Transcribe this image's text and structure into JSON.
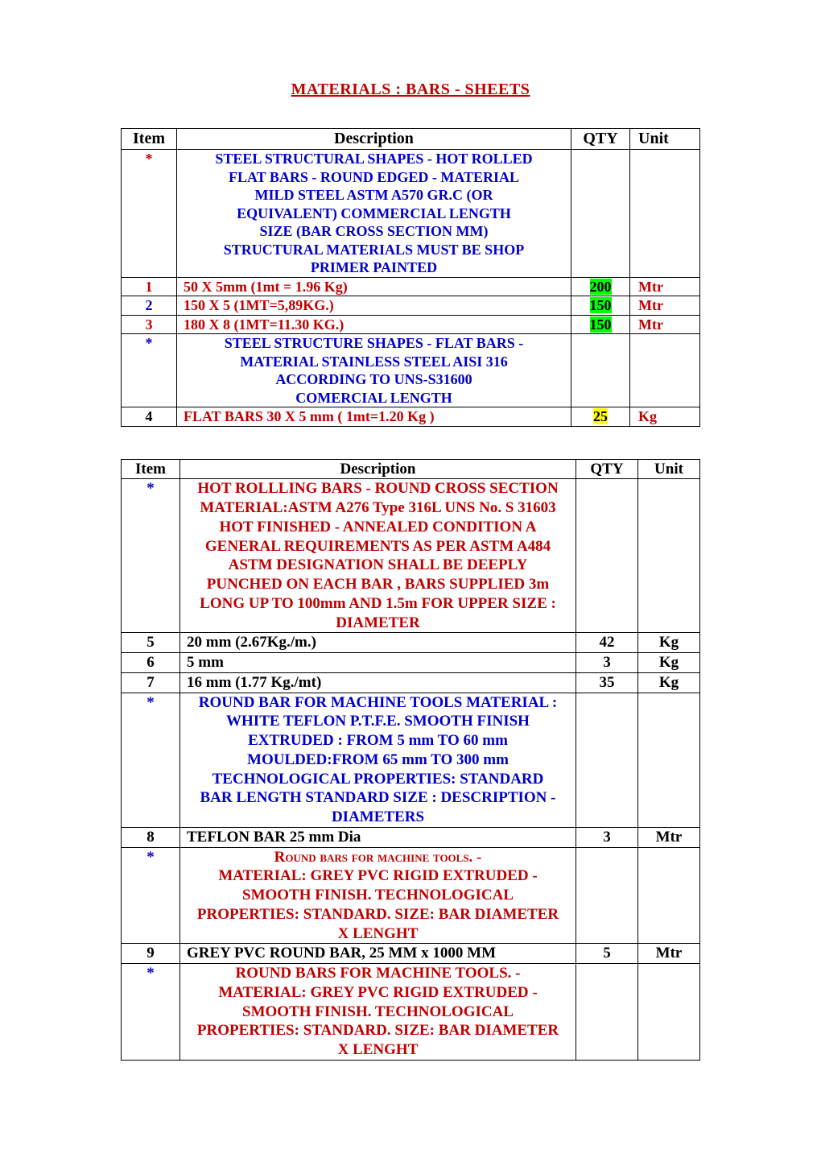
{
  "title": "MATERIALS :    BARS  -  SHEETS  ",
  "table1": {
    "headers": {
      "item": "Item",
      "desc": "Description",
      "qty": "QTY",
      "unit": "Unit"
    },
    "rows": [
      {
        "item": "*",
        "item_class": "star-red",
        "desc_lines": [
          "STEEL STRUCTURAL SHAPES - HOT ROLLED",
          "FLAT BARS - ROUND EDGED - MATERIAL",
          "MILD STEEL ASTM A570 GR.C (OR",
          "EQUIVALENT) COMMERCIAL LENGTH",
          "SIZE (BAR CROSS SECTION MM)",
          "STRUCTURAL MATERIALS MUST BE SHOP",
          "PRIMER PAINTED"
        ],
        "desc_class": "blue",
        "desc_bold": true,
        "qty": "",
        "unit": ""
      },
      {
        "item": "1",
        "item_class": "red",
        "desc": "50 X 5mm (1mt = 1.96 Kg)",
        "desc_class": "red",
        "desc_left": true,
        "desc_bold": true,
        "qty": "200",
        "qty_class": "green-hl",
        "unit": "Mtr",
        "unit_class": "red"
      },
      {
        "item": "2",
        "item_class": "blue",
        "desc": "150 X 5 (1MT=5,89KG.)",
        "desc_class": "red",
        "desc_left": true,
        "desc_bold": true,
        "qty": "150",
        "qty_class": "green-hl",
        "unit": "Mtr",
        "unit_class": "red"
      },
      {
        "item": "3",
        "item_class": "red",
        "desc": "180 X 8 (1MT=11.30 KG.)",
        "desc_class": "red",
        "desc_left": true,
        "desc_bold": true,
        "qty": "150",
        "qty_class": "green-hl",
        "unit": "Mtr",
        "unit_class": "red"
      },
      {
        "item": "*",
        "item_class": "star",
        "desc_lines": [
          "STEEL STRUCTURE SHAPES - FLAT BARS -",
          "MATERIAL STAINLESS STEEL AISI 316",
          "ACCORDING TO UNS-S31600",
          "COMERCIAL LENGTH"
        ],
        "desc_class": "blue",
        "desc_bold": true,
        "qty": "",
        "unit": ""
      },
      {
        "item": "4",
        "item_class": "",
        "desc": "FLAT BARS 30 X 5 mm ( 1mt=1.20 Kg )",
        "desc_class": "red",
        "desc_left": true,
        "desc_bold": true,
        "qty": "25",
        "qty_class": "yellow-hl",
        "unit": "Kg",
        "unit_class": "red"
      }
    ]
  },
  "table2": {
    "headers": {
      "item": "Item",
      "desc": "Description",
      "qty": "QTY",
      "unit": "Unit"
    },
    "rows": [
      {
        "item": "*",
        "item_class": "star",
        "desc_lines": [
          "HOT ROLLLING BARS - ROUND CROSS SECTION",
          "MATERIAL:ASTM A276 Type 316L  UNS No. S 31603",
          "HOT FINISHED - ANNEALED CONDITION A",
          "GENERAL REQUIREMENTS AS PER ASTM A484",
          "ASTM DESIGNATION SHALL BE DEEPLY",
          "PUNCHED ON EACH BAR , BARS SUPPLIED 3m",
          "LONG UP TO 100mm  AND 1.5m FOR UPPER SIZE :",
          "DIAMETER"
        ],
        "desc_class": "red smaller",
        "desc_bold": true,
        "qty": "",
        "unit": ""
      },
      {
        "item": "5",
        "desc": "20 mm (2.67Kg./m.)",
        "desc_left": true,
        "desc_bold": true,
        "qty": "42",
        "unit": "Kg"
      },
      {
        "item": "6",
        "desc": "5 mm",
        "desc_left": true,
        "desc_bold": true,
        "qty": "3",
        "unit": "Kg"
      },
      {
        "item": "7",
        "desc": "16 mm (1.77 Kg./mt)",
        "desc_left": true,
        "desc_bold": true,
        "qty": "35",
        "unit": "Kg"
      },
      {
        "item": "*",
        "item_class": "star",
        "desc_lines": [
          "ROUND BAR FOR MACHINE TOOLS MATERIAL :",
          "WHITE TEFLON P.T.F.E. SMOOTH FINISH",
          "EXTRUDED : FROM 5 mm TO  60 mm",
          "MOULDED:FROM 65 mm TO 300 mm",
          "TECHNOLOGICAL PROPERTIES: STANDARD",
          "BAR LENGTH STANDARD SIZE : DESCRIPTION -",
          "DIAMETERS"
        ],
        "desc_class": "blue smaller",
        "desc_bold": true,
        "qty": "",
        "unit": ""
      },
      {
        "item": "8",
        "desc": "TEFLON BAR  25 mm Dia",
        "desc_left": true,
        "desc_bold": true,
        "qty": "3",
        "unit": "Mtr"
      },
      {
        "item": "*",
        "item_class": "star",
        "desc_lines_sc": "Round bars for machine tools. -",
        "desc_lines": [
          "MATERIAL: GREY  PVC RIGID EXTRUDED -",
          "SMOOTH FINISH. TECHNOLOGICAL",
          "PROPERTIES: STANDARD. SIZE: BAR DIAMETER",
          "X LENGHT"
        ],
        "desc_class": "red smaller",
        "desc_bold": true,
        "qty": "",
        "unit": ""
      },
      {
        "item": "9",
        "desc": "GREY PVC ROUND BAR, 25 MM x 1000 MM",
        "desc_left": true,
        "desc_bold": true,
        "qty": "5",
        "unit": "Mtr"
      },
      {
        "item": "*",
        "item_class": "star",
        "desc_lines": [
          "ROUND BARS FOR MACHINE TOOLS. -",
          "MATERIAL: GREY  PVC RIGID EXTRUDED -",
          "SMOOTH FINISH. TECHNOLOGICAL",
          "PROPERTIES: STANDARD. SIZE: BAR DIAMETER",
          "X LENGHT"
        ],
        "desc_class": "red smaller",
        "desc_bold": true,
        "qty": "",
        "unit": ""
      }
    ]
  }
}
